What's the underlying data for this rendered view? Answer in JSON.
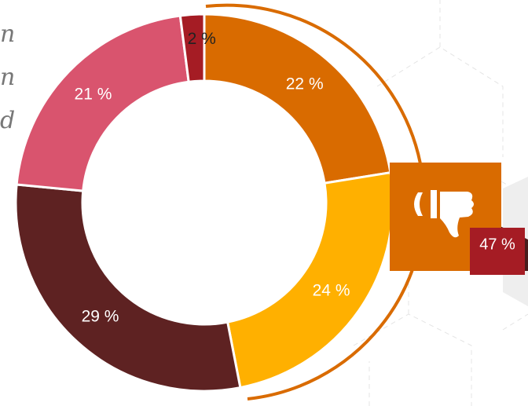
{
  "chart_data": {
    "type": "donut",
    "categories": [
      null,
      null,
      null,
      null,
      null
    ],
    "values": [
      22,
      24,
      29,
      21,
      2
    ],
    "value_labels": [
      "22 %",
      "24 %",
      "29 %",
      "21 %",
      "2 %"
    ],
    "colors": [
      "#d96b00",
      "#ffb000",
      "#5e2222",
      "#d9546e",
      "#a51c24"
    ],
    "label_colors": [
      "#ffffff",
      "#ffffff",
      "#ffffff",
      "#ffffff",
      "#222222"
    ],
    "side_text": [
      "n",
      "n",
      "d"
    ],
    "callout_label": "47 %"
  }
}
